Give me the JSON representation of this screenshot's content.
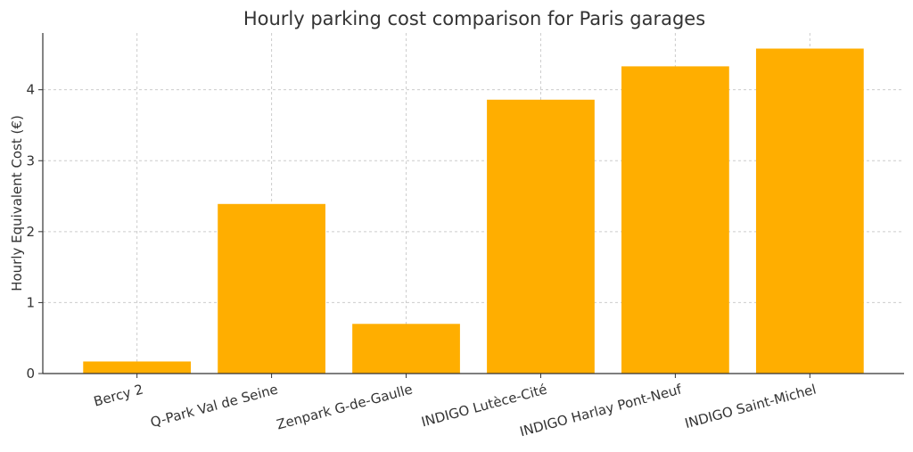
{
  "chart_data": {
    "type": "bar",
    "title": "Hourly parking cost comparison for Paris garages",
    "xlabel": "",
    "ylabel": "Hourly Equivalent Cost (€)",
    "categories": [
      "Bercy 2",
      "Q-Park Val de Seine",
      "Zenpark G-de-Gaulle",
      "INDIGO Lutèce-Cité",
      "INDIGO Harlay Pont-Neuf",
      "INDIGO Saint-Michel"
    ],
    "values": [
      0.17,
      2.39,
      0.7,
      3.86,
      4.33,
      4.58
    ],
    "ylim": [
      0,
      4.8
    ],
    "yticks": [
      0,
      1,
      2,
      3,
      4
    ],
    "grid": true,
    "bar_color": "#FFAE00"
  }
}
